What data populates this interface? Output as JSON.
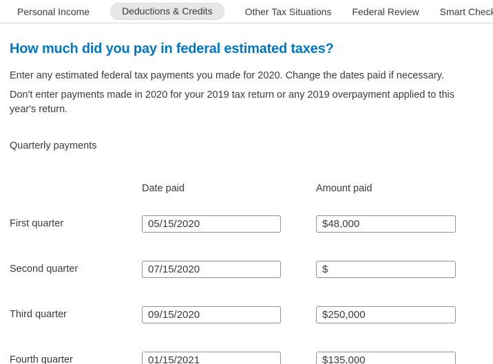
{
  "tabs": {
    "items": [
      {
        "label": "Personal Income",
        "selected": false
      },
      {
        "label": "Deductions & Credits",
        "selected": true
      },
      {
        "label": "Other Tax Situations",
        "selected": false
      },
      {
        "label": "Federal Review",
        "selected": false
      },
      {
        "label": "Smart Check",
        "selected": false
      }
    ]
  },
  "page": {
    "title": "How much did you pay in federal estimated taxes?",
    "intro": "Enter any estimated federal tax payments you made for 2020. Change the dates paid if necessary.",
    "note": "Don't enter payments made in 2020 for your 2019 tax return or any 2019 overpayment applied to this year's return.",
    "section_label": "Quarterly payments"
  },
  "table": {
    "columns": {
      "date": "Date paid",
      "amount": "Amount paid"
    },
    "rows": [
      {
        "label": "First quarter",
        "date": "05/15/2020",
        "amount": "$48,000"
      },
      {
        "label": "Second quarter",
        "date": "07/15/2020",
        "amount": "$"
      },
      {
        "label": "Third quarter",
        "date": "09/15/2020",
        "amount": "$250,000"
      },
      {
        "label": "Fourth quarter",
        "date": "01/15/2021",
        "amount": "$135,000"
      }
    ]
  },
  "colors": {
    "accent": "#0077C5",
    "text": "#393A3D",
    "tab_pill_bg": "#E7E7E7",
    "divider": "#D4D7DA",
    "input_border": "#8D9096"
  }
}
